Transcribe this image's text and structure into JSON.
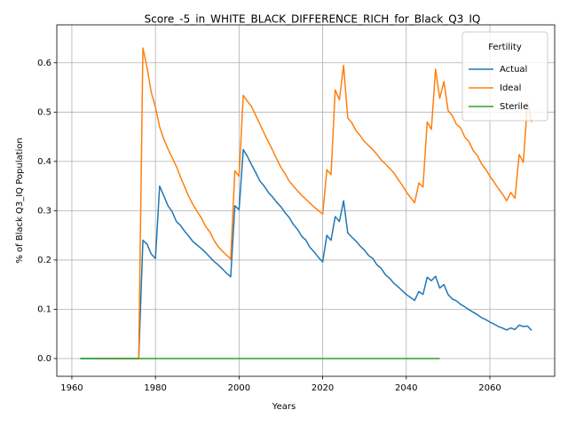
{
  "chart_data": {
    "type": "line",
    "title": "Score_-5_in_WHITE_BLACK_DIFFERENCE_RICH_for_Black_Q3_IQ",
    "xlabel": "Years",
    "ylabel": "% of Black Q3_IQ Population",
    "legend_title": "Fertility",
    "legend_loc": "upper right",
    "grid": true,
    "xlim": [
      1956.4,
      2075.5
    ],
    "xticks": [
      1960,
      1980,
      2000,
      2020,
      2040,
      2060
    ],
    "ylim": [
      -0.036,
      0.677
    ],
    "yticks": [
      {
        "value": 0,
        "label": "0.0"
      },
      0.1,
      0.2,
      0.3,
      0.4,
      0.5,
      0.6
    ],
    "x": [
      1962,
      1963,
      1964,
      1965,
      1966,
      1967,
      1968,
      1969,
      1970,
      1971,
      1972,
      1973,
      1974,
      1975,
      1976,
      1977,
      1978,
      1979,
      1980,
      1981,
      1982,
      1983,
      1984,
      1985,
      1986,
      1987,
      1988,
      1989,
      1990,
      1991,
      1992,
      1993,
      1994,
      1995,
      1996,
      1997,
      1998,
      1999,
      2000,
      2001,
      2002,
      2003,
      2004,
      2005,
      2006,
      2007,
      2008,
      2009,
      2010,
      2011,
      2012,
      2013,
      2014,
      2015,
      2016,
      2017,
      2018,
      2019,
      2020,
      2021,
      2022,
      2023,
      2024,
      2025,
      2026,
      2027,
      2028,
      2029,
      2030,
      2031,
      2032,
      2033,
      2034,
      2035,
      2036,
      2037,
      2038,
      2039,
      2040,
      2041,
      2042,
      2043,
      2044,
      2045,
      2046,
      2047,
      2048,
      2049,
      2050,
      2051,
      2052,
      2053,
      2054,
      2055,
      2056,
      2057,
      2058,
      2059,
      2060,
      2061,
      2062,
      2063,
      2064,
      2065,
      2066,
      2067,
      2068,
      2069,
      2070
    ],
    "series": [
      {
        "name": "Actual",
        "color": "#1f77b4",
        "values": [
          0,
          0,
          0,
          0,
          0,
          0,
          0,
          0,
          0,
          0,
          0,
          0,
          0,
          0,
          0,
          0.24,
          0.232,
          0.212,
          0.203,
          0.35,
          0.33,
          0.31,
          0.298,
          0.278,
          0.27,
          0.258,
          0.248,
          0.237,
          0.23,
          0.223,
          0.215,
          0.206,
          0.197,
          0.19,
          0.182,
          0.173,
          0.166,
          0.31,
          0.302,
          0.424,
          0.41,
          0.393,
          0.377,
          0.36,
          0.35,
          0.337,
          0.328,
          0.317,
          0.308,
          0.296,
          0.286,
          0.272,
          0.262,
          0.248,
          0.24,
          0.225,
          0.216,
          0.205,
          0.196,
          0.25,
          0.24,
          0.288,
          0.278,
          0.32,
          0.255,
          0.246,
          0.238,
          0.228,
          0.22,
          0.209,
          0.203,
          0.19,
          0.183,
          0.17,
          0.163,
          0.153,
          0.146,
          0.138,
          0.13,
          0.124,
          0.118,
          0.136,
          0.13,
          0.165,
          0.158,
          0.167,
          0.143,
          0.15,
          0.13,
          0.121,
          0.117,
          0.11,
          0.105,
          0.099,
          0.094,
          0.089,
          0.083,
          0.079,
          0.074,
          0.07,
          0.065,
          0.062,
          0.058,
          0.062,
          0.059,
          0.068,
          0.065,
          0.066,
          0.057
        ]
      },
      {
        "name": "Ideal",
        "color": "#ff7f0e",
        "values": [
          null,
          null,
          null,
          null,
          0,
          0,
          0,
          0,
          0,
          0,
          0,
          0,
          0,
          0,
          0,
          0.63,
          0.59,
          0.54,
          0.51,
          0.47,
          0.445,
          0.425,
          0.408,
          0.39,
          0.368,
          0.348,
          0.328,
          0.312,
          0.298,
          0.285,
          0.268,
          0.257,
          0.24,
          0.227,
          0.218,
          0.21,
          0.202,
          0.381,
          0.37,
          0.534,
          0.522,
          0.511,
          0.493,
          0.475,
          0.457,
          0.44,
          0.423,
          0.405,
          0.388,
          0.375,
          0.36,
          0.35,
          0.34,
          0.331,
          0.323,
          0.315,
          0.307,
          0.3,
          0.293,
          0.383,
          0.373,
          0.545,
          0.525,
          0.595,
          0.488,
          0.478,
          0.462,
          0.452,
          0.44,
          0.432,
          0.424,
          0.414,
          0.403,
          0.395,
          0.386,
          0.377,
          0.364,
          0.352,
          0.338,
          0.327,
          0.316,
          0.356,
          0.348,
          0.48,
          0.465,
          0.587,
          0.528,
          0.562,
          0.503,
          0.493,
          0.475,
          0.468,
          0.449,
          0.44,
          0.422,
          0.412,
          0.395,
          0.384,
          0.37,
          0.358,
          0.345,
          0.334,
          0.32,
          0.337,
          0.325,
          0.414,
          0.398,
          0.52,
          0.48
        ]
      },
      {
        "name": "Sterile",
        "color": "#2ca02c",
        "values": [
          0,
          0,
          0,
          0,
          0,
          0,
          0,
          0,
          0,
          0,
          0,
          0,
          0,
          0,
          0,
          0,
          0,
          0,
          0,
          0,
          0,
          0,
          0,
          0,
          0,
          0,
          0,
          0,
          0,
          0,
          0,
          0,
          0,
          0,
          0,
          0,
          0,
          0,
          0,
          0,
          0,
          0,
          0,
          0,
          0,
          0,
          0,
          0,
          0,
          0,
          0,
          0,
          0,
          0,
          0,
          0,
          0,
          0,
          0,
          0,
          0,
          0,
          0,
          0,
          0,
          0,
          0,
          0,
          0,
          0,
          0,
          0,
          0,
          0,
          0,
          0,
          0,
          0,
          0,
          0,
          0,
          0,
          0,
          0,
          0,
          0,
          0,
          null,
          null,
          null,
          null,
          null,
          null,
          null,
          null,
          null,
          null,
          null,
          null,
          null,
          null,
          null,
          null,
          null,
          null,
          null,
          null,
          null,
          null
        ]
      }
    ]
  }
}
